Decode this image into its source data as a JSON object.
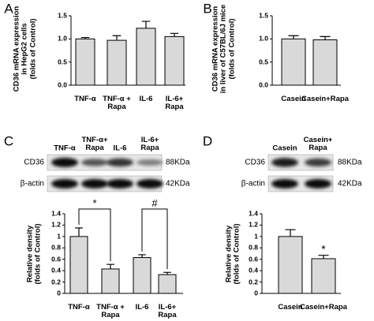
{
  "chart_data": [
    {
      "panel": "A",
      "type": "bar",
      "ylabel": "CD36 mRNA expression\nin HepG2 cells\n(folds of Control)",
      "categories": [
        "TNF-α",
        "TNF-α +\nRapa",
        "IL-6",
        "IL-6+\nRapa"
      ],
      "values": [
        1,
        0.97,
        1.23,
        1.05
      ],
      "errors": [
        0.03,
        0.1,
        0.15,
        0.07
      ],
      "color": "#d9d9d9",
      "ylim": [
        0,
        1.5
      ],
      "yticks": [
        {
          "value": 0,
          "label": "0.0"
        },
        {
          "value": 0.5,
          "label": "0.5"
        },
        {
          "value": 1,
          "label": "1.0"
        },
        {
          "value": 1.5,
          "label": "1.5"
        }
      ]
    },
    {
      "panel": "B",
      "type": "bar",
      "ylabel": "CD36 mRNA expression\nin liver of C57BL/6J mice\n(folds of Control)",
      "categories": [
        "Casein",
        "Casein+Rapa"
      ],
      "values": [
        1,
        0.98
      ],
      "errors": [
        0.07,
        0.07
      ],
      "color": "#d9d9d9",
      "ylim": [
        0,
        1.5
      ],
      "yticks": [
        {
          "value": 0,
          "label": "0.0"
        },
        {
          "value": 0.5,
          "label": "0.5"
        },
        {
          "value": 1,
          "label": "1.0"
        },
        {
          "value": 1.5,
          "label": "1.5"
        }
      ]
    },
    {
      "panel": "C",
      "type": "bar",
      "ylabel": "Relative density\n(folds of Control)",
      "categories": [
        "TNF-α",
        "TNF-α +\nRapa",
        "IL-6",
        "IL-6+\nRapa"
      ],
      "values": [
        1,
        0.43,
        0.63,
        0.33
      ],
      "errors": [
        0.15,
        0.08,
        0.05,
        0.04
      ],
      "color": "#d9d9d9",
      "ylim": [
        0,
        1.4
      ],
      "yticks": [
        0,
        0.2,
        0.4,
        0.6,
        0.8,
        1,
        1.2,
        1.4
      ],
      "annotations": [
        "*",
        "#"
      ]
    },
    {
      "panel": "D",
      "type": "bar",
      "ylabel": "Relative density\n(folds of Control)",
      "categories": [
        "Casein",
        "Casein+Rapa"
      ],
      "values": [
        1,
        0.61
      ],
      "errors": [
        0.12,
        0.06
      ],
      "color": "#d9d9d9",
      "ylim": [
        0,
        1.4
      ],
      "yticks": [
        0,
        0.2,
        0.4,
        0.6,
        0.8,
        1,
        1.2,
        1.4
      ],
      "annotations": [
        "*"
      ]
    }
  ],
  "blots": [
    {
      "lanes": [
        "TNF-α",
        "TNF-α+\nRapa",
        "IL-6",
        "IL-6+\nRapa"
      ],
      "rows": [
        {
          "name": "CD36",
          "size": "88KDa"
        },
        {
          "name": "β-actin",
          "size": "42KDa"
        }
      ]
    },
    {
      "lanes": [
        "Casein",
        "Casein+\nRapa"
      ],
      "rows": [
        {
          "name": "CD36",
          "size": "88KDa"
        },
        {
          "name": "β-actin",
          "size": "42KDa"
        }
      ]
    }
  ]
}
